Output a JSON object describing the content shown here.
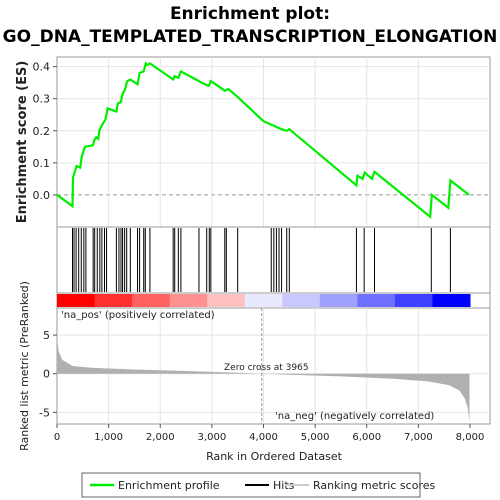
{
  "chart_data": {
    "type": "line",
    "title_line1": "Enrichment plot:",
    "title_line2": "GO_DNA_TEMPLATED_TRANSCRIPTION_ELONGATION",
    "es_panel": {
      "ylabel": "Enrichment score (ES)",
      "ylim": [
        -0.1,
        0.43
      ],
      "yticks": [
        "0.0",
        "0.1",
        "0.2",
        "0.3",
        "0.4"
      ],
      "ytick_values": [
        0.0,
        0.1,
        0.2,
        0.3,
        0.4
      ],
      "points": [
        [
          0,
          0
        ],
        [
          300,
          -0.035
        ],
        [
          310,
          0.055
        ],
        [
          380,
          0.09
        ],
        [
          450,
          0.085
        ],
        [
          480,
          0.12
        ],
        [
          540,
          0.15
        ],
        [
          700,
          0.155
        ],
        [
          720,
          0.17
        ],
        [
          760,
          0.18
        ],
        [
          800,
          0.175
        ],
        [
          820,
          0.2
        ],
        [
          880,
          0.22
        ],
        [
          940,
          0.235
        ],
        [
          980,
          0.27
        ],
        [
          1150,
          0.26
        ],
        [
          1180,
          0.285
        ],
        [
          1240,
          0.29
        ],
        [
          1260,
          0.31
        ],
        [
          1320,
          0.33
        ],
        [
          1360,
          0.355
        ],
        [
          1420,
          0.36
        ],
        [
          1560,
          0.345
        ],
        [
          1600,
          0.38
        ],
        [
          1680,
          0.385
        ],
        [
          1720,
          0.41
        ],
        [
          1750,
          0.405
        ],
        [
          1800,
          0.41
        ],
        [
          2250,
          0.36
        ],
        [
          2280,
          0.37
        ],
        [
          2350,
          0.365
        ],
        [
          2400,
          0.385
        ],
        [
          2750,
          0.355
        ],
        [
          2800,
          0.35
        ],
        [
          2940,
          0.34
        ],
        [
          2980,
          0.355
        ],
        [
          3250,
          0.325
        ],
        [
          3320,
          0.33
        ],
        [
          3500,
          0.305
        ],
        [
          4000,
          0.23
        ],
        [
          4350,
          0.205
        ],
        [
          4450,
          0.2
        ],
        [
          4500,
          0.205
        ],
        [
          5800,
          0.03
        ],
        [
          5820,
          0.06
        ],
        [
          5920,
          0.05
        ],
        [
          5960,
          0.07
        ],
        [
          6100,
          0.05
        ],
        [
          6150,
          0.072
        ],
        [
          7230,
          -0.068
        ],
        [
          7260,
          0.0
        ],
        [
          7580,
          -0.04
        ],
        [
          7620,
          0.045
        ],
        [
          7980,
          0.0
        ]
      ]
    },
    "hits": [
      300,
      330,
      370,
      420,
      470,
      520,
      560,
      700,
      730,
      780,
      830,
      870,
      920,
      960,
      1150,
      1200,
      1240,
      1270,
      1310,
      1350,
      1420,
      1560,
      1600,
      1680,
      1710,
      1800,
      2250,
      2280,
      2350,
      2400,
      2750,
      2900,
      2950,
      2980,
      3250,
      3280,
      3500,
      4150,
      4200,
      4250,
      4300,
      4350,
      4450,
      4500,
      5800,
      5950,
      6150,
      7250,
      7620
    ],
    "rank_bar_colors": [
      "#ff0000",
      "#ff3030",
      "#ff6060",
      "#ff9090",
      "#ffc0c0",
      "#e8e8ff",
      "#c8c8ff",
      "#a0a0ff",
      "#7070ff",
      "#4040ff",
      "#0000ff"
    ],
    "metric_panel": {
      "ylabel": "Ranked list metric (PreRanked)",
      "xlabel": "Rank in Ordered Dataset",
      "ylim": [
        -6.5,
        8.5
      ],
      "yticks": [
        "-5",
        "0",
        "5"
      ],
      "ytick_values": [
        -5,
        0,
        5
      ],
      "xlim": [
        0,
        8000
      ],
      "xticks": [
        "0",
        "1,000",
        "2,000",
        "3,000",
        "4,000",
        "5,000",
        "6,000",
        "7,000",
        "8,000"
      ],
      "xtick_values": [
        0,
        1000,
        2000,
        3000,
        4000,
        5000,
        6000,
        7000,
        8000
      ],
      "zero_cross_label": "Zero cross at 3965",
      "zero_cross": 3965,
      "pos_label": "'na_pos' (positively correlated)",
      "neg_label": "'na_neg' (negatively correlated)",
      "curve": [
        [
          0,
          5
        ],
        [
          30,
          3
        ],
        [
          100,
          1.8
        ],
        [
          300,
          1.0
        ],
        [
          700,
          0.75
        ],
        [
          1500,
          0.55
        ],
        [
          2500,
          0.35
        ],
        [
          3500,
          0.12
        ],
        [
          3965,
          0
        ],
        [
          4500,
          -0.12
        ],
        [
          5500,
          -0.35
        ],
        [
          6500,
          -0.65
        ],
        [
          7200,
          -1.0
        ],
        [
          7600,
          -1.5
        ],
        [
          7800,
          -2.2
        ],
        [
          7900,
          -3.2
        ],
        [
          7960,
          -4.5
        ],
        [
          7990,
          -6.3
        ]
      ]
    },
    "legend": {
      "entries": [
        "Enrichment profile",
        "Hits",
        "Ranking metric scores"
      ],
      "colors": [
        "#00ee00",
        "#000000",
        "#cccccc"
      ]
    },
    "colors": {
      "es_line": "#00ee00",
      "metric_fill": "#b0b0b0",
      "pos_text": "#cc0000",
      "neg_text": "#0000cc"
    }
  }
}
